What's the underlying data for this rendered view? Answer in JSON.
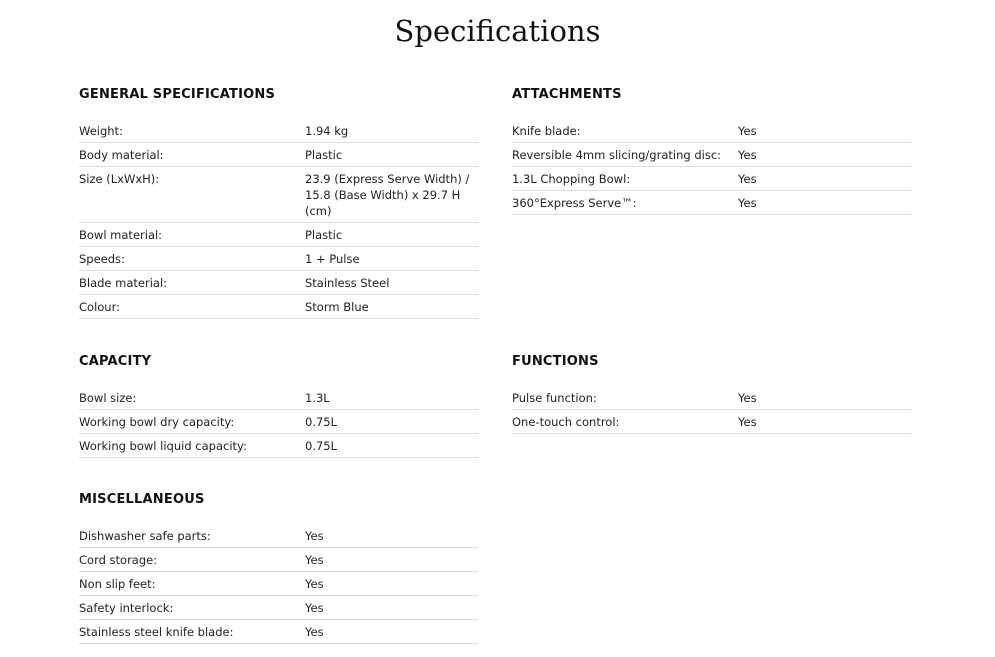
{
  "title": "Specifications",
  "sections": [
    {
      "heading": "GENERAL SPECIFICATIONS",
      "rows": [
        {
          "label": "Weight:",
          "value": "1.94 kg"
        },
        {
          "label": "Body material:",
          "value": "Plastic"
        },
        {
          "label": "Size (LxWxH):",
          "value": "23.9 (Express Serve Width) / 15.8 (Base Width) x 29.7 H (cm)"
        },
        {
          "label": "Bowl material:",
          "value": "Plastic"
        },
        {
          "label": "Speeds:",
          "value": "1 + Pulse"
        },
        {
          "label": "Blade material:",
          "value": "Stainless Steel"
        },
        {
          "label": "Colour:",
          "value": "Storm Blue"
        }
      ]
    },
    {
      "heading": "ATTACHMENTS",
      "rows": [
        {
          "label": "Knife blade:",
          "value": "Yes"
        },
        {
          "label": "Reversible 4mm slicing/grating disc:",
          "value": "Yes"
        },
        {
          "label": "1.3L Chopping Bowl:",
          "value": "Yes"
        },
        {
          "label": "360°Express Serve™:",
          "value": "Yes"
        }
      ]
    },
    {
      "heading": "CAPACITY",
      "rows": [
        {
          "label": "Bowl size:",
          "value": "1.3L"
        },
        {
          "label": "Working bowl dry capacity:",
          "value": "0.75L"
        },
        {
          "label": "Working bowl liquid capacity:",
          "value": "0.75L"
        }
      ]
    },
    {
      "heading": "FUNCTIONS",
      "rows": [
        {
          "label": "Pulse function:",
          "value": "Yes"
        },
        {
          "label": "One-touch control:",
          "value": "Yes"
        }
      ]
    },
    {
      "heading": "MISCELLANEOUS",
      "rows": [
        {
          "label": "Dishwasher safe parts:",
          "value": "Yes"
        },
        {
          "label": "Cord storage:",
          "value": "Yes"
        },
        {
          "label": "Non slip feet:",
          "value": "Yes"
        },
        {
          "label": "Safety interlock:",
          "value": "Yes"
        },
        {
          "label": "Stainless steel knife blade:",
          "value": "Yes"
        }
      ]
    }
  ]
}
